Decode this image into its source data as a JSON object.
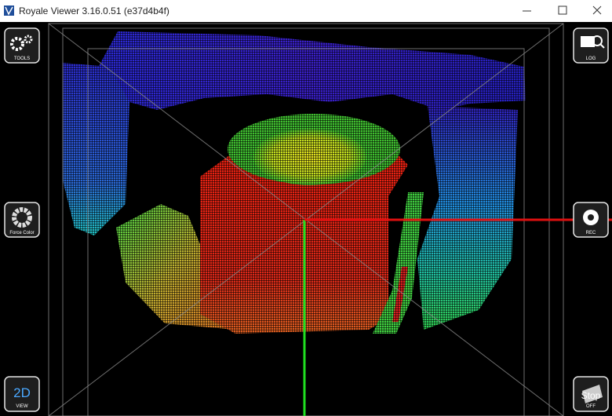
{
  "window": {
    "title": "Royale Viewer 3.16.0.51 (e37d4b4f)"
  },
  "buttons": {
    "tools": "TOOLS",
    "log": "LOG",
    "force_color": "Force Color",
    "rec": "REC",
    "view_2d": {
      "label": "2D",
      "caption": "VIEW"
    },
    "stop": {
      "label": "Stop",
      "caption": "OFF"
    }
  }
}
